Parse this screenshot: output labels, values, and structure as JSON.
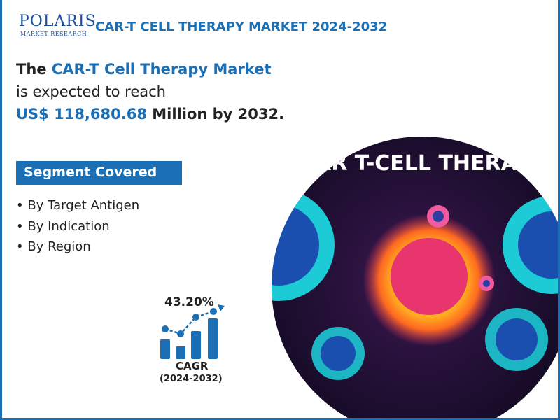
{
  "logo": {
    "name": "POLARIS",
    "tagline": "MARKET RESEARCH"
  },
  "header": {
    "title": "CAR-T CELL THERAPY MARKET 2024-2032"
  },
  "headline": {
    "lead": "The",
    "market": "CAR-T Cell Therapy Market",
    "line2": "is expected to reach",
    "value": "US$ 118,680.68",
    "tail": "Million by 2032."
  },
  "segments": {
    "heading": "Segment Covered",
    "items": [
      "By Target Antigen",
      "By Indication",
      "By Region"
    ]
  },
  "cagr": {
    "value": "43.20%",
    "label": "CAGR",
    "period": "(2024-2032)"
  },
  "image": {
    "caption": "CAR T-CELL THERAPY"
  }
}
